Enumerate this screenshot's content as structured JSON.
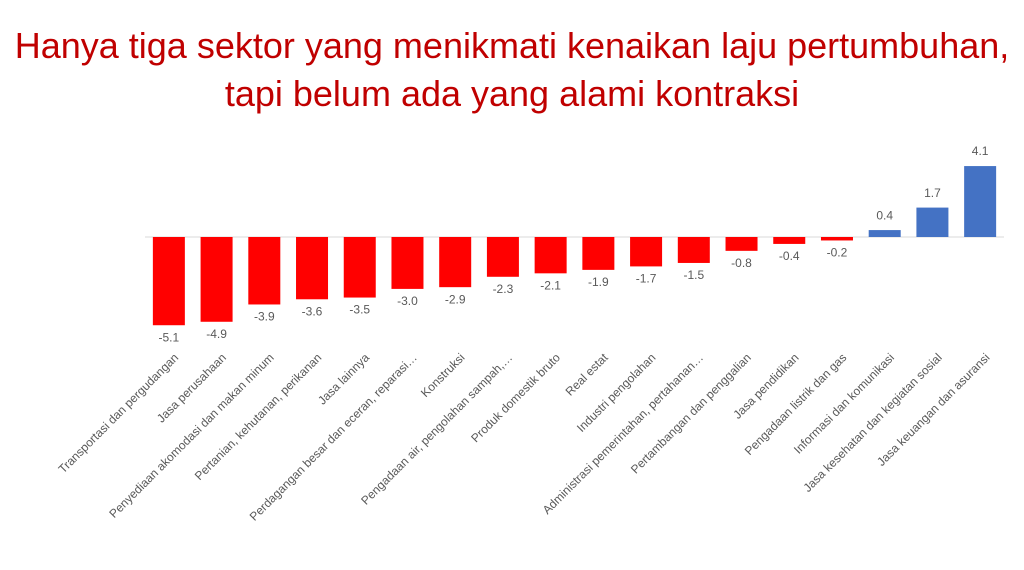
{
  "chart_data": {
    "type": "bar",
    "title": "Hanya tiga sektor yang menikmati kenaikan laju pertumbuhan, tapi belum ada yang alami kontraksi",
    "categories": [
      "Transportasi dan pergudangan",
      "Jasa perusahaan",
      "Penyediaan akomodasi dan makan minum",
      "Pertanian, kehutanan, perikanan",
      "Jasa lainnya",
      "Perdagangan besar dan eceran, reparasi…",
      "Konstruksi",
      "Pengadaan air, pengolahan sampah,…",
      "Produk domestik bruto",
      "Real estat",
      "Industri pengolahan",
      "Administrasi pemerintahan, pertahanan…",
      "Pertambangan dan penggalian",
      "Jasa pendidikan",
      "Pengadaan listrik dan gas",
      "Informasi dan komunikasi",
      "Jasa kesehatan dan kegiatan sosial",
      "Jasa keuangan dan asuransi"
    ],
    "values": [
      -5.1,
      -4.9,
      -3.9,
      -3.6,
      -3.5,
      -3.0,
      -2.9,
      -2.3,
      -2.1,
      -1.9,
      -1.7,
      -1.5,
      -0.8,
      -0.4,
      -0.2,
      0.4,
      1.7,
      4.1
    ],
    "value_labels": [
      "-5.1",
      "-4.9",
      "-3.9",
      "-3.6",
      "-3.5",
      "-3.0",
      "-2.9",
      "-2.3",
      "-2.1",
      "-1.9",
      "-1.7",
      "-1.5",
      "-0.8",
      "-0.4",
      "-0.2",
      "0.4",
      "1.7",
      "4.1"
    ],
    "color": "#4472c4",
    "negative_color": "#ff0000"
  }
}
